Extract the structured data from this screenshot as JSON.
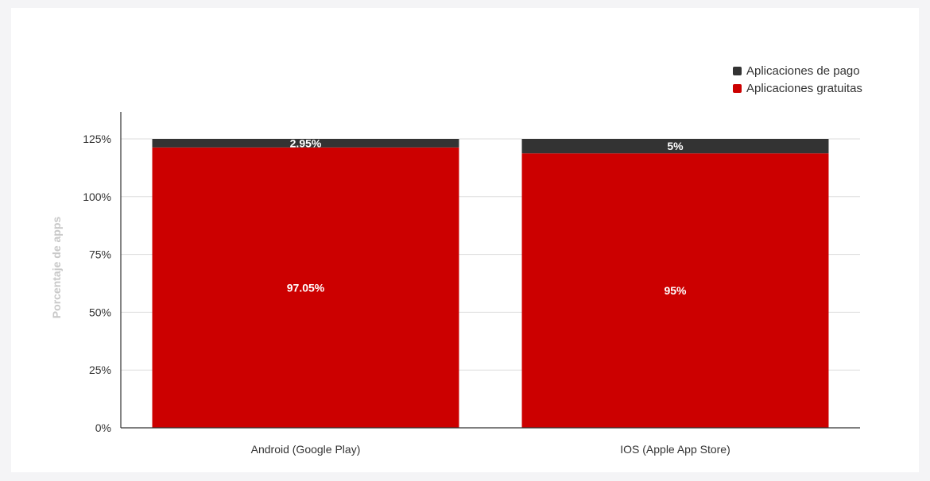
{
  "chart_data": {
    "type": "bar",
    "stacked": true,
    "normalized": true,
    "categories": [
      "Android (Google Play)",
      "IOS (Apple App Store)"
    ],
    "series": [
      {
        "name": "Aplicaciones gratuitas",
        "color": "#cc0000",
        "values": [
          97.05,
          95
        ],
        "labels": [
          "97.05%",
          "95%"
        ]
      },
      {
        "name": "Aplicaciones de pago",
        "color": "#333333",
        "values": [
          2.95,
          5
        ],
        "labels": [
          "2.95%",
          "5%"
        ]
      }
    ],
    "ylabel": "Porcentaje de apps",
    "xlabel": "",
    "ylim": [
      0,
      125
    ],
    "yticks": [
      0,
      25,
      50,
      75,
      100,
      125
    ],
    "ytick_labels": [
      "0%",
      "25%",
      "50%",
      "75%",
      "100%",
      "125%"
    ],
    "grid": true,
    "legend_position": "top-right"
  },
  "legend": {
    "items": [
      {
        "label": "Aplicaciones de pago",
        "color": "#333333"
      },
      {
        "label": "Aplicaciones gratuitas",
        "color": "#cc0000"
      }
    ]
  }
}
